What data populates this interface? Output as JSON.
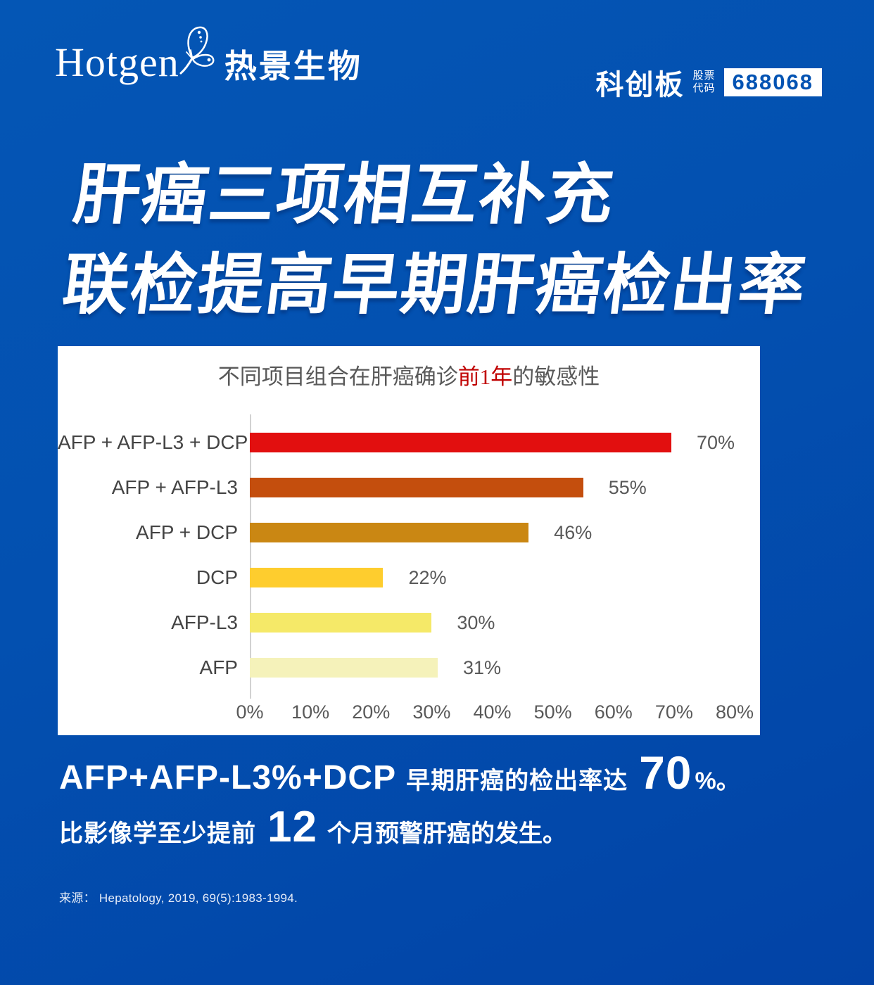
{
  "header": {
    "logo_en": "Hotgen",
    "logo_cn": "热景生物",
    "board": "科创板",
    "stock_label_line1": "股票",
    "stock_label_line2": "代码",
    "stock_code": "688068"
  },
  "title": {
    "line1": "肝癌三项相互补充",
    "line2": "联检提高早期肝癌检出率"
  },
  "chart_data": {
    "type": "bar",
    "orientation": "horizontal",
    "title_prefix": "不同项目组合在肝癌确诊",
    "title_highlight": "前1年",
    "title_suffix": "的敏感性",
    "categories": [
      "AFP + AFP-L3 + DCP",
      "AFP + AFP-L3",
      "AFP + DCP",
      "DCP",
      "AFP-L3",
      "AFP"
    ],
    "values": [
      70,
      55,
      46,
      22,
      30,
      31
    ],
    "value_labels": [
      "70%",
      "55%",
      "46%",
      "22%",
      "30%",
      "31%"
    ],
    "bar_colors": [
      "#e20f0f",
      "#c44e0d",
      "#ca8713",
      "#fecd2e",
      "#f5e968",
      "#f5f2ba"
    ],
    "xlim": [
      0,
      80
    ],
    "x_ticks": [
      "0%",
      "10%",
      "20%",
      "30%",
      "40%",
      "50%",
      "60%",
      "70%",
      "80%"
    ],
    "grid": false,
    "legend": "none"
  },
  "callout": {
    "line1_bold": "AFP+AFP-L3%+DCP",
    "line1_text": "早期肝癌的检出率达",
    "line1_number": "70",
    "line1_suffix": "%。",
    "line2_prefix": "比影像学至少提前",
    "line2_number": "12",
    "line2_suffix": "个月预警肝癌的发生。"
  },
  "source": {
    "text": "来源：  Hepatology, 2019, 69(5):1983-1994."
  },
  "colors": {
    "background_top": "#0456b5",
    "background_bottom": "#0243a6",
    "highlight_red": "#c00000",
    "stock_code_blue": "#0353b3"
  }
}
